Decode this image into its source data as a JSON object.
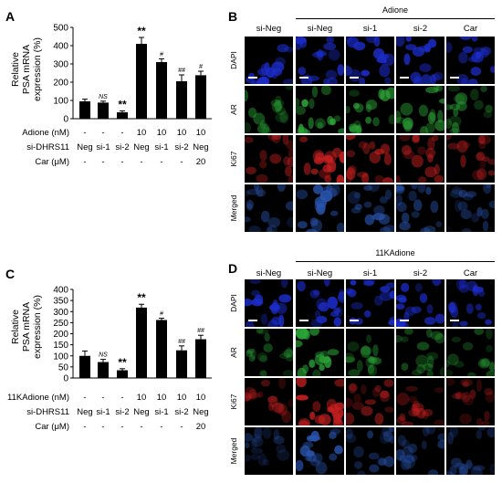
{
  "panels": {
    "A": {
      "label": "A",
      "y_axis_label": [
        "Relative",
        "PSA mRNA",
        "expression (%)"
      ],
      "conditions": [
        {
          "name": "Adione (nM)",
          "values": [
            "-",
            "-",
            "-",
            "10",
            "10",
            "10",
            "10"
          ]
        },
        {
          "name": "si-DHRS11",
          "values": [
            "Neg",
            "si-1",
            "si-2",
            "Neg",
            "si-1",
            "si-2",
            "Neg"
          ]
        },
        {
          "name": "Car (μM)",
          "values": [
            "-",
            "-",
            "-",
            "-",
            "-",
            "-",
            "20"
          ]
        }
      ]
    },
    "B": {
      "label": "B",
      "treatment_title": "Adione",
      "columns": [
        "si-Neg",
        "si-Neg",
        "si-1",
        "si-2",
        "Car"
      ],
      "rows": [
        "DAPI",
        "AR",
        "Ki67",
        "Merged"
      ]
    },
    "C": {
      "label": "C",
      "y_axis_label": [
        "Relative",
        "PSA mRNA",
        "expression (%)"
      ],
      "conditions": [
        {
          "name": "11KAdione (nM)",
          "values": [
            "-",
            "-",
            "-",
            "10",
            "10",
            "10",
            "10"
          ]
        },
        {
          "name": "si-DHRS11",
          "values": [
            "Neg",
            "si-1",
            "si-2",
            "Neg",
            "si-1",
            "si-2",
            "Neg"
          ]
        },
        {
          "name": "Car (μM)",
          "values": [
            "-",
            "-",
            "-",
            "-",
            "-",
            "-",
            "20"
          ]
        }
      ]
    },
    "D": {
      "label": "D",
      "treatment_title": "11KAdione",
      "columns": [
        "si-Neg",
        "si-Neg",
        "si-1",
        "si-2",
        "Car"
      ],
      "rows": [
        "DAPI",
        "AR",
        "Ki67",
        "Merged"
      ]
    }
  },
  "chart_data": [
    {
      "type": "bar",
      "panel": "A",
      "title": "",
      "xlabel": "",
      "ylabel": "Relative PSA mRNA expression (%)",
      "ylim": [
        0,
        500
      ],
      "yticks": [
        0,
        100,
        200,
        300,
        400,
        500
      ],
      "values": [
        95,
        88,
        35,
        410,
        310,
        205,
        238
      ],
      "errors": [
        12,
        8,
        8,
        35,
        18,
        35,
        22
      ],
      "annotations": [
        "",
        "NS",
        "**",
        "**",
        "#",
        "##",
        "#"
      ],
      "bar_color": "#000000"
    },
    {
      "type": "bar",
      "panel": "C",
      "title": "",
      "xlabel": "",
      "ylabel": "Relative PSA mRNA expression (%)",
      "ylim": [
        0,
        400
      ],
      "yticks": [
        0,
        50,
        100,
        150,
        200,
        250,
        300,
        350,
        400
      ],
      "values": [
        100,
        72,
        35,
        318,
        262,
        125,
        175
      ],
      "errors": [
        22,
        12,
        7,
        15,
        8,
        20,
        18
      ],
      "annotations": [
        "",
        "NS",
        "**",
        "**",
        "#",
        "##",
        "##"
      ],
      "bar_color": "#000000"
    }
  ],
  "micrograph_colors": {
    "DAPI": "#1c2cc8",
    "AR": "#2ca838",
    "Ki67": "#c82020",
    "Merged": "#2a55b0"
  }
}
